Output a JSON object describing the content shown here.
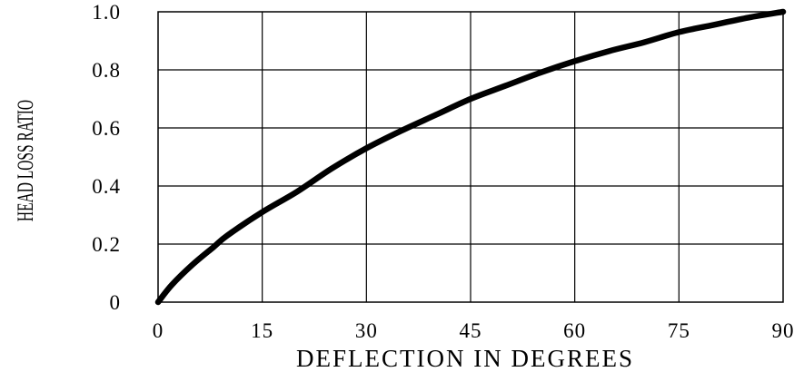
{
  "chart_data": {
    "type": "line",
    "title": "",
    "xlabel": "DEFLECTION IN DEGREES",
    "ylabel": "HEAD LOSS RATIO",
    "xlim": [
      0,
      90
    ],
    "ylim": [
      0,
      1.0
    ],
    "x_ticks": [
      0,
      15,
      30,
      45,
      60,
      75,
      90
    ],
    "x_tick_labels": [
      "0",
      "15",
      "30",
      "45",
      "60",
      "75",
      "90"
    ],
    "y_ticks": [
      0,
      0.2,
      0.4,
      0.6,
      0.8,
      1.0
    ],
    "y_tick_labels": [
      "0",
      "0.2",
      "0.4",
      "0.6",
      "0.8",
      "1.0"
    ],
    "grid": true,
    "series": [
      {
        "color": "#000000",
        "x": [
          0,
          2,
          5,
          8,
          10,
          15,
          20,
          25,
          30,
          35,
          40,
          45,
          50,
          55,
          60,
          65,
          70,
          75,
          80,
          85,
          90
        ],
        "y": [
          0,
          0.06,
          0.13,
          0.19,
          0.23,
          0.31,
          0.38,
          0.46,
          0.53,
          0.59,
          0.645,
          0.7,
          0.745,
          0.79,
          0.83,
          0.865,
          0.895,
          0.93,
          0.955,
          0.98,
          1.0
        ]
      }
    ]
  }
}
